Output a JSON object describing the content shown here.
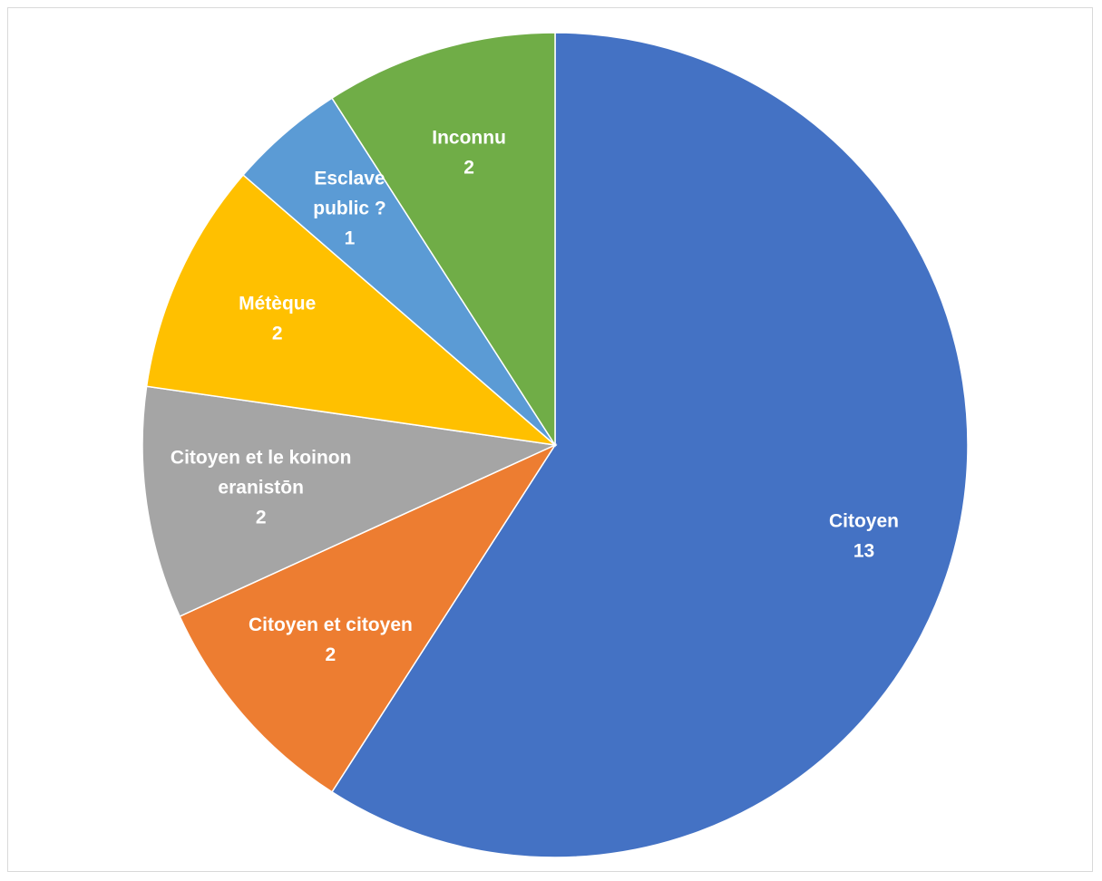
{
  "chart_data": {
    "type": "pie",
    "title": "",
    "legend": "none",
    "start_angle_deg": 0,
    "direction": "clockwise",
    "slices": [
      {
        "label": "Citoyen",
        "value": 13,
        "color": "#4472C4",
        "label_lines": [
          "Citoyen",
          "13"
        ]
      },
      {
        "label": "Citoyen et citoyen",
        "value": 2,
        "color": "#ED7D31",
        "label_lines": [
          "Citoyen et citoyen",
          "2"
        ]
      },
      {
        "label": "Citoyen et le koinon eranistōn",
        "value": 2,
        "color": "#A5A5A5",
        "label_lines": [
          "Citoyen et le koinon",
          "eranistōn",
          "2"
        ]
      },
      {
        "label": "Métèque",
        "value": 2,
        "color": "#FFC000",
        "label_lines": [
          "Métèque",
          "2"
        ]
      },
      {
        "label": "Esclave public ?",
        "value": 1,
        "color": "#5B9BD5",
        "label_lines": [
          "Esclave",
          "public ?",
          "1"
        ]
      },
      {
        "label": "Inconnu",
        "value": 2,
        "color": "#70AD47",
        "label_lines": [
          "Inconnu",
          "2"
        ]
      }
    ]
  }
}
